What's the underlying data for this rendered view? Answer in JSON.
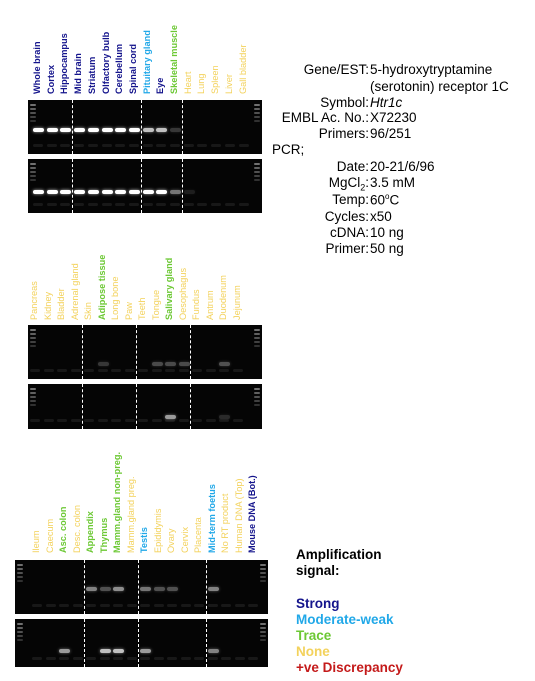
{
  "colors": {
    "strong": "#14148c",
    "moderate": "#21a8e8",
    "trace": "#6cc834",
    "none": "#f3d25c",
    "discrepancy": "#c41a1a"
  },
  "panels": [
    {
      "lanes": [
        {
          "name": "Whole brain",
          "signal": "strong"
        },
        {
          "name": "Cortex",
          "signal": "strong"
        },
        {
          "name": "Hippocampus",
          "signal": "strong"
        },
        {
          "name": "Mid brain",
          "signal": "strong"
        },
        {
          "name": "Striatum",
          "signal": "strong"
        },
        {
          "name": "Olfactory bulb",
          "signal": "strong"
        },
        {
          "name": "Cerebellum",
          "signal": "strong"
        },
        {
          "name": "Spinal cord",
          "signal": "strong"
        },
        {
          "name": "Pituitary gland",
          "signal": "moderate"
        },
        {
          "name": "Eye",
          "signal": "strong"
        },
        {
          "name": "Skeletal muscle",
          "signal": "trace"
        },
        {
          "name": "Heart",
          "signal": "none"
        },
        {
          "name": "Lung",
          "signal": "none"
        },
        {
          "name": "Spleen",
          "signal": "none"
        },
        {
          "name": "Liver",
          "signal": "none"
        },
        {
          "name": "Gall bladder",
          "signal": "none"
        }
      ]
    },
    {
      "lanes": [
        {
          "name": "Pancreas",
          "signal": "none"
        },
        {
          "name": "Kidney",
          "signal": "none"
        },
        {
          "name": "Bladder",
          "signal": "none"
        },
        {
          "name": "Adrenal gland",
          "signal": "none"
        },
        {
          "name": "Skin",
          "signal": "none"
        },
        {
          "name": "Adipose tissue",
          "signal": "trace"
        },
        {
          "name": "Long bone",
          "signal": "none"
        },
        {
          "name": "Paw",
          "signal": "none"
        },
        {
          "name": "Teeth",
          "signal": "none"
        },
        {
          "name": "Tongue",
          "signal": "none"
        },
        {
          "name": "Salivary gland",
          "signal": "trace"
        },
        {
          "name": "Oesophagus",
          "signal": "none"
        },
        {
          "name": "Fundus",
          "signal": "none"
        },
        {
          "name": "Antrum",
          "signal": "none"
        },
        {
          "name": "Duodenum",
          "signal": "none"
        },
        {
          "name": "Jejunum",
          "signal": "none"
        }
      ]
    },
    {
      "lanes": [
        {
          "name": "Ileum",
          "signal": "none"
        },
        {
          "name": "Caecum",
          "signal": "none"
        },
        {
          "name": "Asc. colon",
          "signal": "trace"
        },
        {
          "name": "Desc. colon",
          "signal": "none"
        },
        {
          "name": "Appendix",
          "signal": "trace"
        },
        {
          "name": "Thymus",
          "signal": "trace"
        },
        {
          "name": "Mamm.gland non-preg.",
          "signal": "trace"
        },
        {
          "name": "Mamm.gland preg.",
          "signal": "none"
        },
        {
          "name": "Testis",
          "signal": "moderate"
        },
        {
          "name": "Epididymis",
          "signal": "none"
        },
        {
          "name": "Ovary",
          "signal": "none"
        },
        {
          "name": "Cervix",
          "signal": "none"
        },
        {
          "name": "Placenta",
          "signal": "none"
        },
        {
          "name": "Mid-term foetus",
          "signal": "moderate"
        },
        {
          "name": "No RT product",
          "signal": "none"
        },
        {
          "name": "Human DNA (Top)",
          "signal": "none"
        },
        {
          "name": "Mouse DNA (Bot.)",
          "signal": "strong"
        }
      ]
    }
  ],
  "info": {
    "rows": [
      {
        "key": "Gene/EST:",
        "value": "5-hydroxytryptamine"
      },
      {
        "key": "",
        "value": "(serotonin) receptor 1C"
      },
      {
        "key": "Symbol:",
        "value": "Htr1c"
      },
      {
        "key": "EMBL Ac. No.:",
        "value": "X72230"
      },
      {
        "key": "Primers:",
        "value": "96/251"
      }
    ],
    "pcr_label": "PCR;",
    "date_key": "Date:",
    "date_val": "20-21/6/96",
    "mg_key_a": "MgCl",
    "mg_key_sub": "2",
    "mg_key_b": ":",
    "mg_val": "3.5 mM",
    "temp_key": "Temp:",
    "temp_num": "60",
    "temp_sup": "o",
    "temp_unit": "C",
    "cycles_key": "Cycles:",
    "cycles_val": "x50",
    "cdna_key": "cDNA:",
    "cdna_val": "10 ng",
    "primer_key": "Primer:",
    "primer_val": "50 ng"
  },
  "legend": {
    "title_1": "Amplification",
    "title_2": "signal:",
    "strong": "Strong",
    "moderate": "Moderate-weak",
    "trace": "Trace",
    "none": "None",
    "discrepancy": "+ve Discrepancy"
  }
}
